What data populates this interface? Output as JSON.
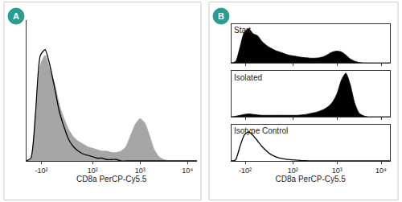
{
  "panel_labels": [
    "A",
    "B"
  ],
  "chart_data": [
    {
      "type": "area",
      "x_label": "CD8a PerCP-Cy5.5",
      "xlim": [
        0.6,
        4.2
      ],
      "xticks": [
        {
          "value": 0.92,
          "label": "-10²"
        },
        {
          "value": 2,
          "label": "10²"
        },
        {
          "value": 3,
          "label": "10³"
        },
        {
          "value": 4,
          "label": "10⁴"
        }
      ],
      "ylim": [
        0,
        100
      ],
      "tick_labels": "x",
      "x": [
        0.6,
        0.7,
        0.8,
        0.9,
        1.0,
        1.1,
        1.2,
        1.3,
        1.4,
        1.5,
        1.6,
        1.7,
        1.8,
        1.9,
        2.0,
        2.1,
        2.2,
        2.3,
        2.4,
        2.5,
        2.6,
        2.7,
        2.8,
        2.9,
        3.0,
        3.1,
        3.2,
        3.3,
        3.4,
        3.5,
        3.6,
        3.7,
        3.8,
        3.9,
        4.0,
        4.1,
        4.2
      ],
      "series": [
        {
          "type": "area",
          "color": "#a6a6a6",
          "values": [
            0,
            2,
            30,
            68,
            75,
            65,
            55,
            40,
            30,
            22,
            17,
            14,
            12,
            10,
            9,
            8,
            7,
            7,
            6,
            6,
            7,
            10,
            18,
            26,
            30,
            27,
            18,
            8,
            3,
            1,
            0,
            0,
            0,
            0,
            0,
            0,
            0
          ]
        },
        {
          "type": "line",
          "color": "#000000",
          "values": [
            0,
            2,
            35,
            75,
            79,
            68,
            52,
            35,
            24,
            15,
            10,
            7,
            5,
            4,
            3,
            2,
            2,
            1,
            1,
            1,
            0,
            0,
            0,
            0,
            0,
            0,
            0,
            0,
            0,
            0,
            0,
            0,
            0,
            0,
            0,
            0,
            0
          ]
        }
      ]
    },
    {
      "type": "area",
      "title": "Start",
      "xlim": [
        0.6,
        4.2
      ],
      "xticks": [
        {
          "value": 0.92,
          "label": "-10²"
        },
        {
          "value": 2,
          "label": "10²"
        },
        {
          "value": 3,
          "label": "10³"
        },
        {
          "value": 4,
          "label": "10⁴"
        }
      ],
      "ylim": [
        0,
        100
      ],
      "tick_labels": false,
      "x": [
        0.6,
        0.7,
        0.8,
        0.9,
        1.0,
        1.1,
        1.2,
        1.3,
        1.4,
        1.5,
        1.6,
        1.7,
        1.8,
        1.9,
        2.0,
        2.1,
        2.2,
        2.3,
        2.4,
        2.5,
        2.6,
        2.7,
        2.8,
        2.9,
        3.0,
        3.1,
        3.2,
        3.3,
        3.4,
        3.5,
        3.6,
        3.7,
        3.8,
        3.9,
        4.0,
        4.1,
        4.2
      ],
      "series": [
        {
          "type": "area",
          "color": "#000000",
          "values": [
            0,
            3,
            40,
            80,
            88,
            75,
            70,
            55,
            45,
            38,
            32,
            28,
            24,
            20,
            18,
            16,
            14,
            13,
            12,
            12,
            13,
            16,
            22,
            28,
            30,
            28,
            20,
            10,
            4,
            1,
            0,
            0,
            0,
            0,
            0,
            0,
            0
          ]
        }
      ]
    },
    {
      "type": "area",
      "title": "Isolated",
      "xlim": [
        0.6,
        4.2
      ],
      "xticks": [
        {
          "value": 0.92,
          "label": "-10²"
        },
        {
          "value": 2,
          "label": "10²"
        },
        {
          "value": 3,
          "label": "10³"
        },
        {
          "value": 4,
          "label": "10⁴"
        }
      ],
      "ylim": [
        0,
        100
      ],
      "tick_labels": false,
      "x": [
        0.6,
        0.7,
        0.8,
        0.9,
        1.0,
        1.1,
        1.2,
        1.3,
        1.4,
        1.5,
        1.6,
        1.7,
        1.8,
        1.9,
        2.0,
        2.1,
        2.2,
        2.3,
        2.4,
        2.5,
        2.6,
        2.7,
        2.8,
        2.9,
        3.0,
        3.1,
        3.2,
        3.3,
        3.4,
        3.5,
        3.6,
        3.7,
        3.8,
        3.9,
        4.0,
        4.1,
        4.2
      ],
      "series": [
        {
          "type": "area",
          "color": "#000000",
          "values": [
            0,
            1,
            3,
            5,
            6,
            5,
            4,
            3,
            3,
            3,
            3,
            3,
            3,
            3,
            3,
            3,
            4,
            5,
            7,
            9,
            12,
            16,
            22,
            32,
            50,
            80,
            95,
            70,
            30,
            8,
            2,
            0,
            0,
            0,
            0,
            0,
            0
          ]
        }
      ]
    },
    {
      "type": "area",
      "title": "Isotype Control",
      "x_label": "CD8a PerCP-Cy5.5",
      "xlim": [
        0.6,
        4.2
      ],
      "xticks": [
        {
          "value": 0.92,
          "label": "-10²"
        },
        {
          "value": 2,
          "label": "10²"
        },
        {
          "value": 3,
          "label": "10³"
        },
        {
          "value": 4,
          "label": "10⁴"
        }
      ],
      "ylim": [
        0,
        100
      ],
      "tick_labels": "x",
      "x": [
        0.6,
        0.7,
        0.8,
        0.9,
        1.0,
        1.1,
        1.2,
        1.3,
        1.4,
        1.5,
        1.6,
        1.7,
        1.8,
        1.9,
        2.0,
        2.1,
        2.2,
        2.3,
        2.4,
        2.5,
        2.6,
        2.7,
        2.8,
        2.9,
        3.0,
        3.1,
        3.2,
        3.3,
        3.4,
        3.5,
        3.6,
        3.7,
        3.8,
        3.9,
        4.0,
        4.1,
        4.2
      ],
      "series": [
        {
          "type": "line",
          "color": "#000000",
          "values": [
            0,
            3,
            40,
            72,
            80,
            70,
            55,
            40,
            28,
            18,
            12,
            8,
            6,
            4,
            3,
            2,
            1,
            1,
            0,
            0,
            0,
            0,
            0,
            0,
            0,
            0,
            0,
            0,
            0,
            0,
            0,
            0,
            0,
            0,
            0,
            0,
            0
          ]
        }
      ]
    }
  ]
}
